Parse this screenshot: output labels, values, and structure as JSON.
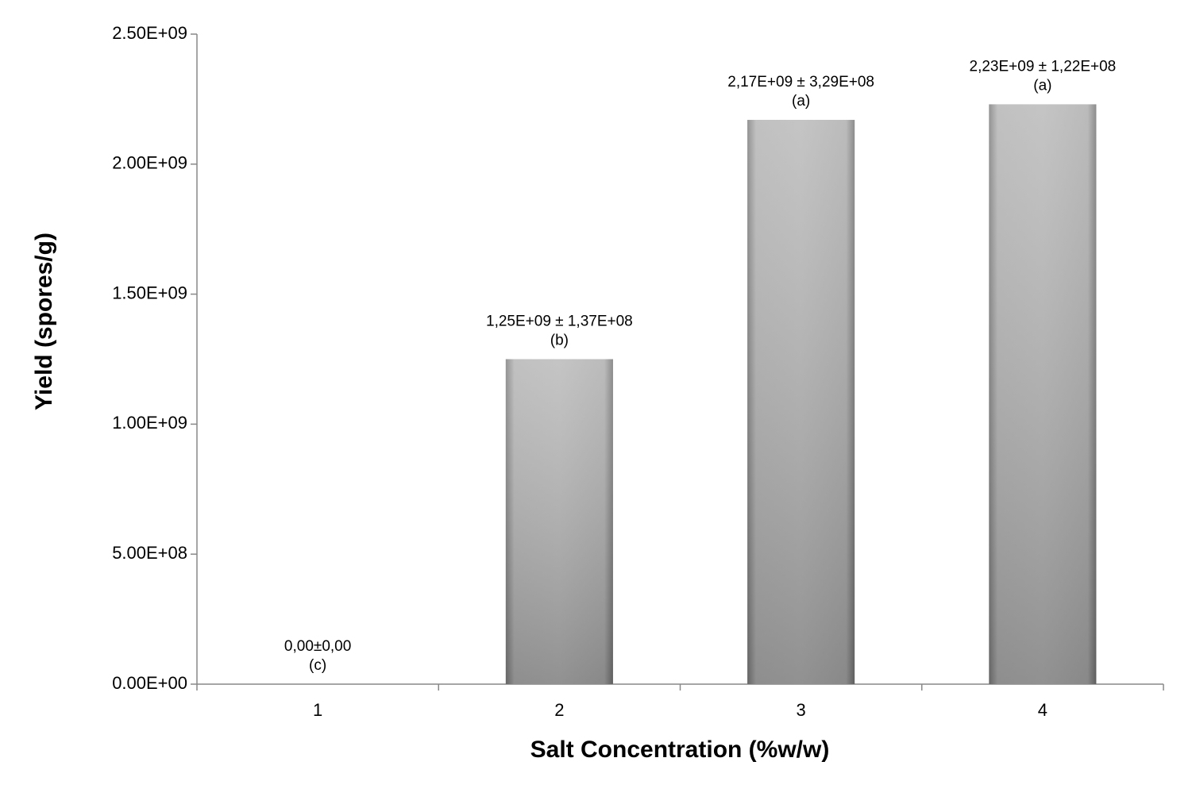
{
  "chart_data": {
    "type": "bar",
    "x_label": "Salt Concentration (%w/w)",
    "y_label": "Yield (spores/g)",
    "categories": [
      1,
      2,
      3,
      4
    ],
    "values": [
      0,
      1250000000,
      2170000000,
      2230000000
    ],
    "value_labels": [
      "0,00±0,00",
      "1,25E+09 ± 1,37E+08",
      "2,17E+09 ± 3,29E+08",
      "2,23E+09 ± 1,22E+08"
    ],
    "group_letters": [
      "(c)",
      "(b)",
      "(a)",
      "(a)"
    ],
    "color": "#a9a9a9",
    "ylim": [
      0,
      2500000000
    ],
    "yticks": [
      {
        "value": 0,
        "label": "0.00E+00"
      },
      {
        "value": 500000000,
        "label": "5.00E+08"
      },
      {
        "value": 1000000000,
        "label": "1.00E+09"
      },
      {
        "value": 1500000000,
        "label": "1.50E+09"
      },
      {
        "value": 2000000000,
        "label": "2.00E+09"
      },
      {
        "value": 2500000000,
        "label": "2.50E+09"
      }
    ],
    "grid": false
  }
}
